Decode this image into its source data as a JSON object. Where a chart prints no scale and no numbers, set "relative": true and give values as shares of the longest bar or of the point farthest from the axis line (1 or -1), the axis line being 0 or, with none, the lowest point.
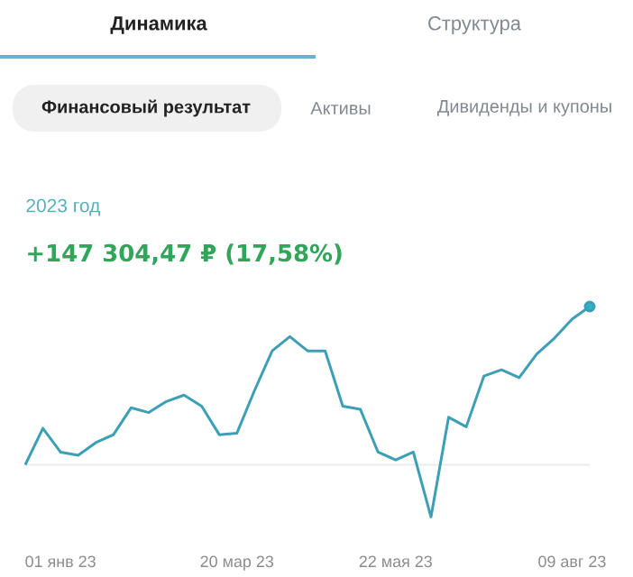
{
  "chart_data": {
    "type": "line",
    "relative": true,
    "title": "2023 год",
    "subtitle": "+147 304,47 ₽ (17,58%)",
    "annotations": [
      "Динамика",
      "Структура",
      "Финансовый результат",
      "Активы",
      "Дивиденды и купоны"
    ],
    "categories": [
      null,
      null,
      "01 янв 23",
      null,
      null,
      null,
      null,
      null,
      null,
      null,
      null,
      null,
      "20 мар 23",
      null,
      null,
      null,
      null,
      null,
      null,
      null,
      null,
      "22 мая 23",
      null,
      null,
      null,
      null,
      null,
      null,
      null,
      null,
      null,
      "09 авг 23",
      null
    ],
    "series": [
      {
        "color": "#3d9fb5",
        "values": [
          0,
          0.23,
          0.08,
          0.06,
          0.14,
          0.19,
          0.36,
          0.33,
          0.4,
          0.44,
          0.37,
          0.19,
          0.2,
          0.47,
          0.72,
          0.81,
          0.72,
          0.72,
          0.37,
          0.35,
          0.08,
          0.03,
          0.08,
          -0.33,
          0.3,
          0.24,
          0.56,
          0.6,
          0.55,
          0.7,
          0.8,
          0.92,
          1.0
        ]
      }
    ],
    "ref_lines": [
      {
        "axis": "y",
        "value": 0,
        "color": "#e8ecef"
      }
    ],
    "tick_labels": "x"
  }
}
